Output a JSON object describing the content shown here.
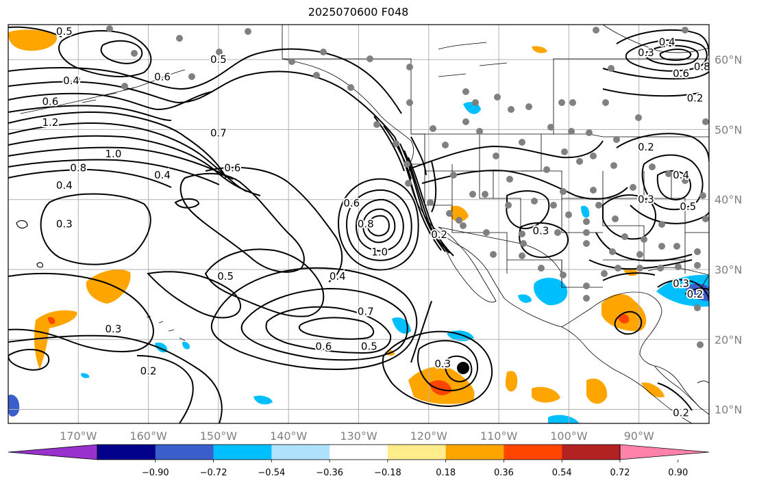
{
  "title": "2025070600 F048",
  "map": {
    "lon_range": [
      -180,
      -80
    ],
    "lat_range": [
      8,
      65
    ],
    "lon_ticks": [
      {
        "value": -170,
        "label": "170°W"
      },
      {
        "value": -160,
        "label": "160°W"
      },
      {
        "value": -150,
        "label": "150°W"
      },
      {
        "value": -140,
        "label": "140°W"
      },
      {
        "value": -130,
        "label": "130°W"
      },
      {
        "value": -120,
        "label": "120°W"
      },
      {
        "value": -110,
        "label": "110°W"
      },
      {
        "value": -100,
        "label": "100°W"
      },
      {
        "value": -90,
        "label": "90°W"
      }
    ],
    "lat_ticks": [
      {
        "value": 10,
        "label": "10°N"
      },
      {
        "value": 20,
        "label": "20°N"
      },
      {
        "value": 30,
        "label": "30°N"
      },
      {
        "value": 40,
        "label": "40°N"
      },
      {
        "value": 50,
        "label": "50°N"
      },
      {
        "value": 60,
        "label": "60°N"
      }
    ],
    "grid": true,
    "contour_labels": [
      {
        "text": "0.4",
        "lon": -171,
        "lat": 57
      },
      {
        "text": "0.6",
        "lon": -174,
        "lat": 54
      },
      {
        "text": "1.2",
        "lon": -174,
        "lat": 51
      },
      {
        "text": "1.0",
        "lon": -165,
        "lat": 46.5
      },
      {
        "text": "0.8",
        "lon": -170,
        "lat": 44.5
      },
      {
        "text": "0.4",
        "lon": -172,
        "lat": 42
      },
      {
        "text": "0.7",
        "lon": -150,
        "lat": 49.5
      },
      {
        "text": "0.6",
        "lon": -148,
        "lat": 44.5
      },
      {
        "text": "0.4",
        "lon": -158,
        "lat": 43.5
      },
      {
        "text": "0.3",
        "lon": -172,
        "lat": 36.5
      },
      {
        "text": "0.5",
        "lon": -150,
        "lat": 60
      },
      {
        "text": "0.5",
        "lon": -172,
        "lat": 64
      },
      {
        "text": "0.6",
        "lon": -158,
        "lat": 57.5
      },
      {
        "text": "0.6",
        "lon": -131,
        "lat": 39.5
      },
      {
        "text": "0.8",
        "lon": -129,
        "lat": 36.5
      },
      {
        "text": "1.0",
        "lon": -127,
        "lat": 32.5
      },
      {
        "text": "0.2",
        "lon": -118.5,
        "lat": 35
      },
      {
        "text": "0.5",
        "lon": -149,
        "lat": 29
      },
      {
        "text": "0.4",
        "lon": -133,
        "lat": 29
      },
      {
        "text": "0.7",
        "lon": -129,
        "lat": 24
      },
      {
        "text": "0.6",
        "lon": -135,
        "lat": 19
      },
      {
        "text": "0.5",
        "lon": -128.5,
        "lat": 19
      },
      {
        "text": "0.3",
        "lon": -165,
        "lat": 21.5
      },
      {
        "text": "0.2",
        "lon": -160,
        "lat": 15.5
      },
      {
        "text": "0.3",
        "lon": -118,
        "lat": 16.5
      },
      {
        "text": "0.3",
        "lon": -104,
        "lat": 35.5
      },
      {
        "text": "0.2",
        "lon": -89,
        "lat": 47.5
      },
      {
        "text": "0.3",
        "lon": -89,
        "lat": 40
      },
      {
        "text": "0.5",
        "lon": -83,
        "lat": 39
      },
      {
        "text": "0.4",
        "lon": -84,
        "lat": 43.5
      },
      {
        "text": "0.2",
        "lon": -82,
        "lat": 54.5
      },
      {
        "text": "0.6",
        "lon": -84,
        "lat": 58
      },
      {
        "text": "0.8",
        "lon": -81,
        "lat": 59
      },
      {
        "text": "0.4",
        "lon": -86,
        "lat": 62.5
      },
      {
        "text": "0.3",
        "lon": -89,
        "lat": 61
      },
      {
        "text": "0.3",
        "lon": -84,
        "lat": 28
      },
      {
        "text": "0.2",
        "lon": -82,
        "lat": 26.5
      },
      {
        "text": "0.2",
        "lon": -84,
        "lat": 9.5
      }
    ]
  },
  "colorbar": {
    "tick_labels": [
      "−0.90",
      "−0.72",
      "−0.54",
      "−0.36",
      "−0.18",
      "0.18",
      "0.36",
      "0.54",
      "0.72",
      "0.90"
    ],
    "colors": [
      "#9932cc",
      "#00008b",
      "#3a5fcd",
      "#00bfff",
      "#b0e2ff",
      "#ffffff",
      "#ffec8b",
      "#ffa500",
      "#ff4500",
      "#b22222",
      "#ff82ab"
    ]
  }
}
